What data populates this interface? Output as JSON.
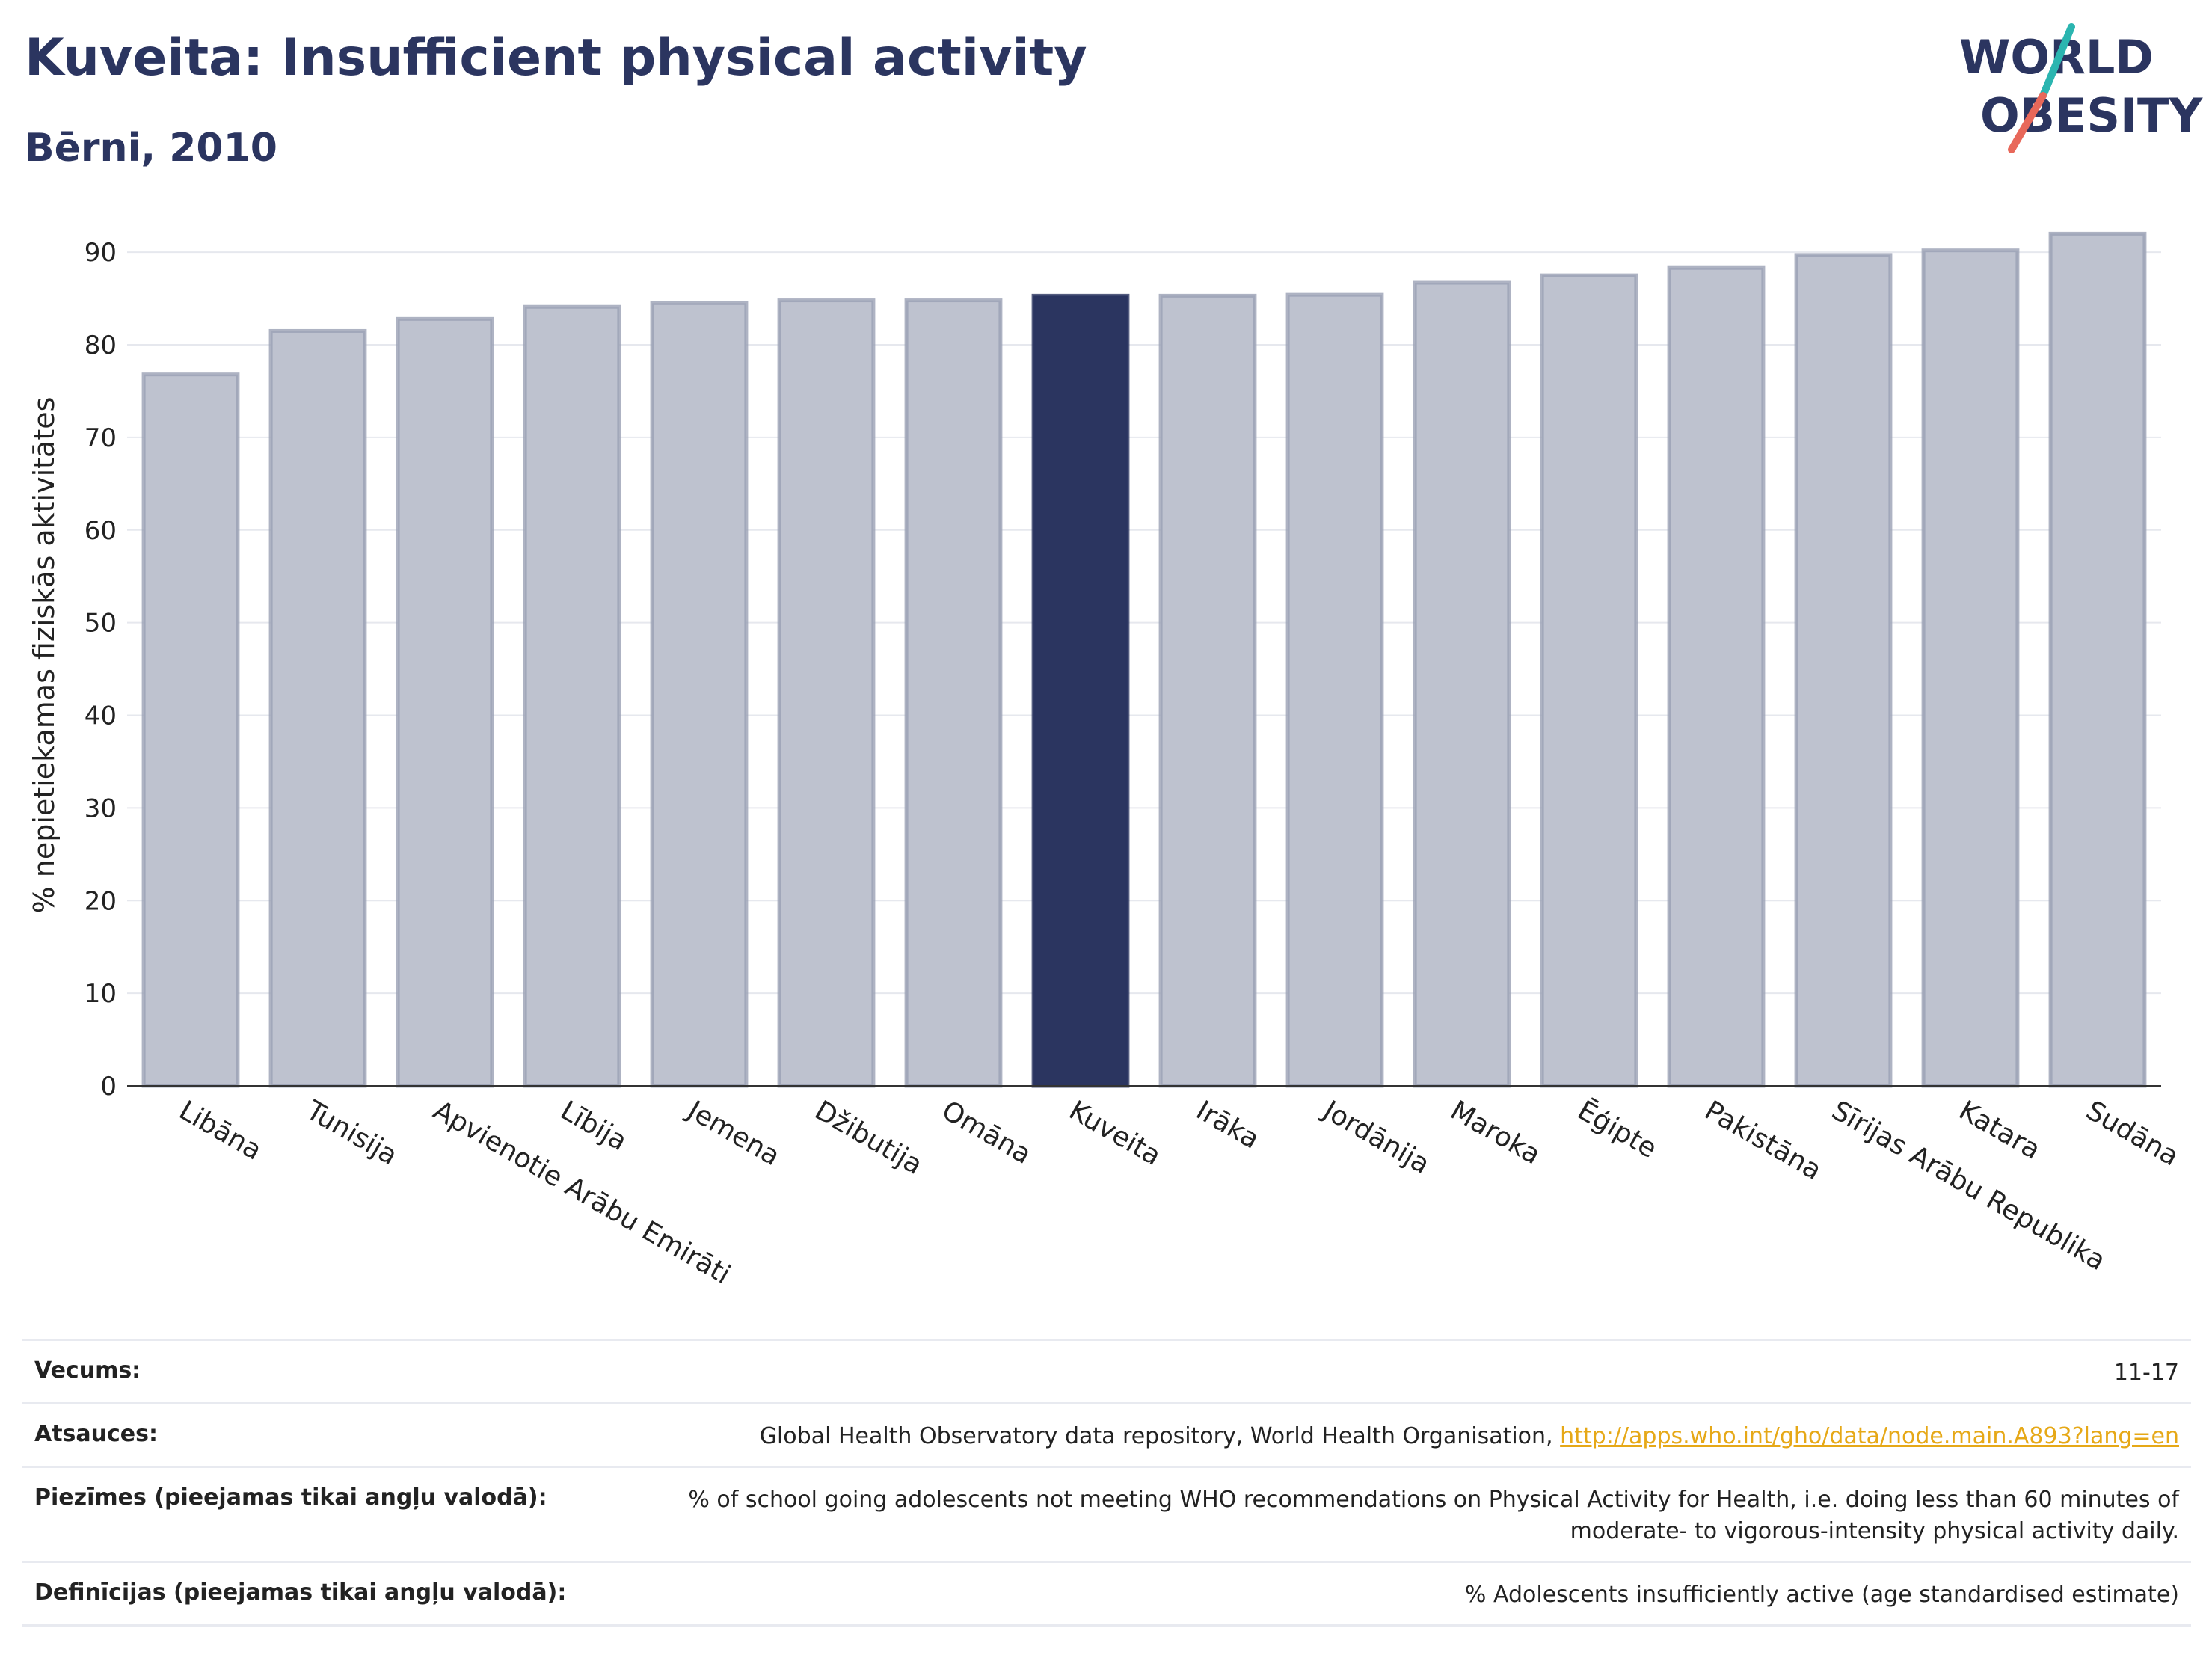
{
  "header": {
    "title": "Kuveita: Insufficient physical activity",
    "subtitle": "Bērni, 2010"
  },
  "logo": {
    "line1": "WORLD",
    "line2": "OBESITY",
    "colors": {
      "text": "#2b3560",
      "slash_red": "#e8685a",
      "slash_teal": "#2bb5b0"
    }
  },
  "colors": {
    "bar": "#bec2cf",
    "bar_stroke": "#9aa0b4",
    "highlight": "#2b3560",
    "grid": "#e6e8ee",
    "axis": "#333333"
  },
  "chart_data": {
    "type": "bar",
    "title": "Kuveita: Insufficient physical activity",
    "subtitle": "Bērni, 2010",
    "xlabel": "",
    "ylabel": "% nepietiekamas fiziskās aktivitātes",
    "ylim": [
      0,
      93
    ],
    "yticks": [
      0,
      10,
      20,
      30,
      40,
      50,
      60,
      70,
      80,
      90
    ],
    "grid": true,
    "highlight": "Kuveita",
    "categories": [
      "Libāna",
      "Tunisija",
      "Apvienotie Arābu Emirāti",
      "Lībija",
      "Jemena",
      "Džibutija",
      "Omāna",
      "Kuveita",
      "Irāka",
      "Jordānija",
      "Maroka",
      "Ēģipte",
      "Pakistāna",
      "Sīrijas Arābu Republika",
      "Katara",
      "Sudāna"
    ],
    "values": [
      76.8,
      81.5,
      82.8,
      84.1,
      84.5,
      84.8,
      84.8,
      85.3,
      85.3,
      85.4,
      86.7,
      87.5,
      88.3,
      89.7,
      90.2,
      92.0
    ]
  },
  "info": {
    "rows": [
      {
        "label": "Vecums:",
        "value": "11-17"
      },
      {
        "label": "Atsauces:",
        "value": "Global Health Observatory data repository, World Health Organisation,",
        "link": "http://apps.who.int/gho/data/node.main.A893?lang=en"
      },
      {
        "label": "Piezīmes (pieejamas tikai angļu valodā):",
        "value": "% of school going adolescents not meeting WHO recommendations on Physical Activity for Health, i.e. doing less than 60 minutes of moderate- to vigorous-intensity physical activity daily."
      },
      {
        "label": "Definīcijas (pieejamas tikai angļu valodā):",
        "value": "% Adolescents insufficiently active (age standardised estimate)"
      }
    ]
  }
}
